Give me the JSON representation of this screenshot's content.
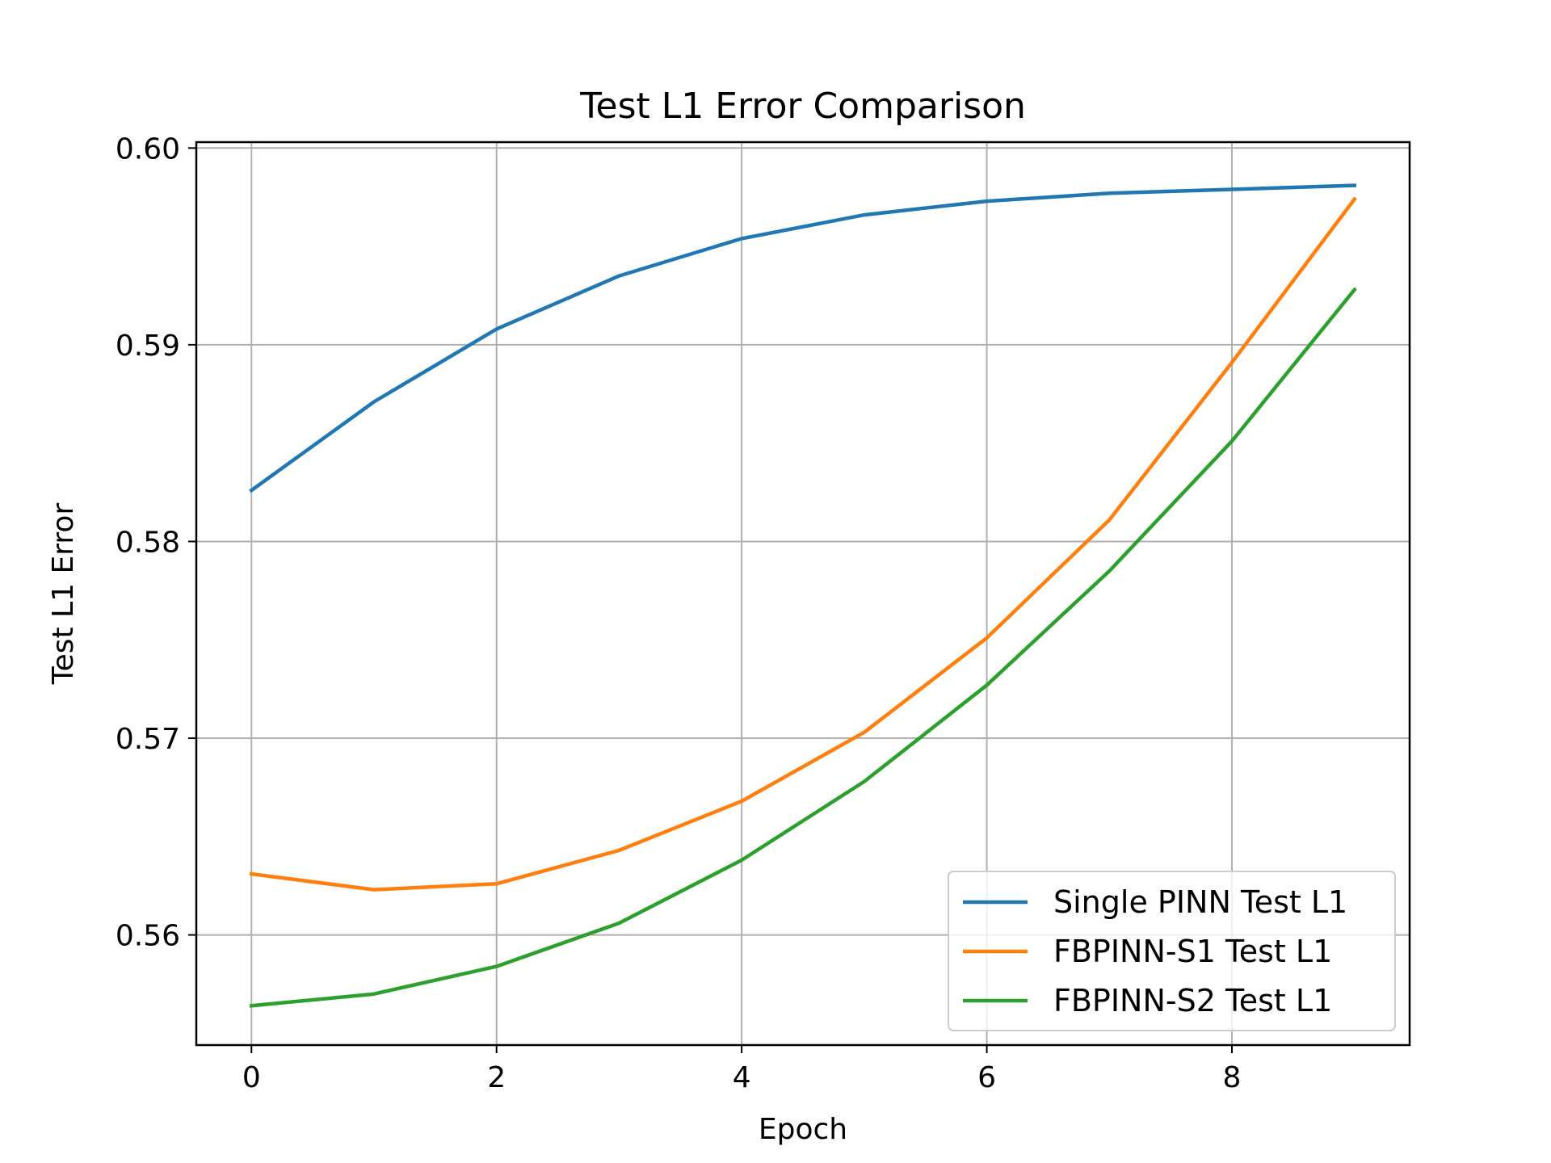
{
  "chart_data": {
    "type": "line",
    "title": "Test L1 Error Comparison",
    "xlabel": "Epoch",
    "ylabel": "Test L1 Error",
    "x": [
      0,
      1,
      2,
      3,
      4,
      5,
      6,
      7,
      8,
      9
    ],
    "xlim": [
      -0.45,
      9.45
    ],
    "ylim": [
      0.5544,
      0.6003
    ],
    "xticks": [
      0,
      2,
      4,
      6,
      8
    ],
    "xtick_labels": [
      "0",
      "2",
      "4",
      "6",
      "8"
    ],
    "yticks": [
      0.56,
      0.57,
      0.58,
      0.59,
      0.6
    ],
    "ytick_labels": [
      "0.56",
      "0.57",
      "0.58",
      "0.59",
      "0.60"
    ],
    "grid": true,
    "legend_position": "bottom-right",
    "series": [
      {
        "name": "Single PINN Test L1",
        "color": "#1f77b4",
        "values": [
          0.5826,
          0.5871,
          0.5908,
          0.5935,
          0.5954,
          0.5966,
          0.5973,
          0.5977,
          0.5979,
          0.5981
        ]
      },
      {
        "name": "FBPINN-S1 Test L1",
        "color": "#ff7f0e",
        "values": [
          0.5631,
          0.5623,
          0.5626,
          0.5643,
          0.5668,
          0.5703,
          0.5751,
          0.5811,
          0.5891,
          0.5974
        ]
      },
      {
        "name": "FBPINN-S2 Test L1",
        "color": "#2ca02c",
        "values": [
          0.5564,
          0.557,
          0.5584,
          0.5606,
          0.5638,
          0.5678,
          0.5727,
          0.5785,
          0.5851,
          0.5928
        ]
      }
    ]
  }
}
